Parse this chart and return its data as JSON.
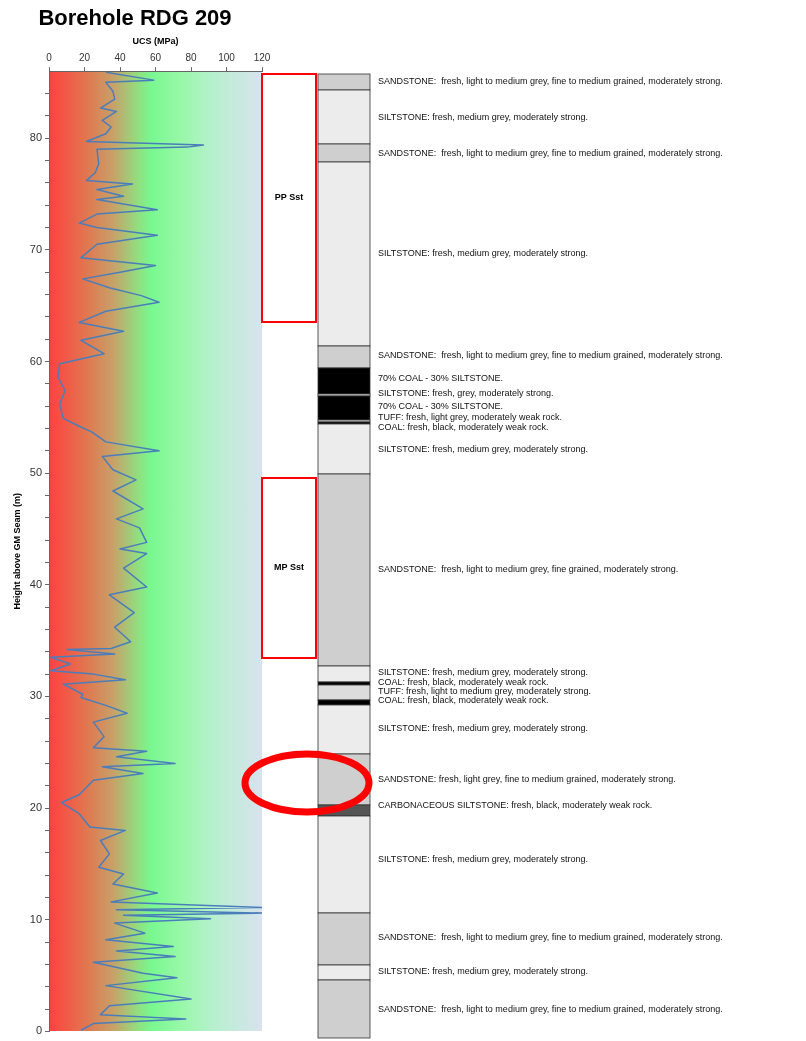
{
  "chart_data": {
    "type": "line",
    "title": "Borehole RDG 209",
    "xlabel": "UCS (MPa)",
    "ylabel": "Height above GM Seam (m)",
    "xlim": [
      0,
      120
    ],
    "xticks": [
      0,
      20,
      40,
      60,
      80,
      100,
      120
    ],
    "ylim": [
      0,
      86
    ],
    "yticks": [
      0,
      {
        "value": 2,
        "label": null
      },
      {
        "value": 4,
        "label": null
      },
      {
        "value": 6,
        "label": null
      },
      {
        "value": 8,
        "label": null
      },
      10,
      {
        "value": 12,
        "label": null
      },
      {
        "value": 14,
        "label": null
      },
      {
        "value": 16,
        "label": null
      },
      {
        "value": 18,
        "label": null
      },
      20,
      {
        "value": 22,
        "label": null
      },
      {
        "value": 24,
        "label": null
      },
      {
        "value": 26,
        "label": null
      },
      {
        "value": 28,
        "label": null
      },
      30,
      {
        "value": 32,
        "label": null
      },
      {
        "value": 34,
        "label": null
      },
      {
        "value": 36,
        "label": null
      },
      {
        "value": 38,
        "label": null
      },
      40,
      {
        "value": 42,
        "label": null
      },
      {
        "value": 44,
        "label": null
      },
      {
        "value": 46,
        "label": null
      },
      {
        "value": 48,
        "label": null
      },
      50,
      {
        "value": 52,
        "label": null
      },
      {
        "value": 54,
        "label": null
      },
      {
        "value": 56,
        "label": null
      },
      {
        "value": 58,
        "label": null
      },
      60,
      {
        "value": 62,
        "label": null
      },
      {
        "value": 64,
        "label": null
      },
      {
        "value": 66,
        "label": null
      },
      {
        "value": 68,
        "label": null
      },
      70,
      {
        "value": 72,
        "label": null
      },
      {
        "value": 74,
        "label": null
      },
      {
        "value": 76,
        "label": null
      },
      {
        "value": 78,
        "label": null
      },
      80,
      {
        "value": 82,
        "label": null
      },
      {
        "value": 84,
        "label": null
      }
    ],
    "legend": false,
    "marker": "none",
    "line_style": "solid",
    "series": [
      {
        "color": "#4a7ebb",
        "x": [
          32,
          59,
          32,
          36,
          37,
          29,
          38,
          30,
          35,
          32,
          21,
          87,
          78,
          27,
          28,
          26,
          21,
          47,
          27,
          42,
          27,
          61,
          27,
          17,
          27,
          61,
          27,
          18,
          60,
          40,
          19,
          34,
          52,
          62,
          32,
          17,
          42,
          18,
          31,
          6,
          5,
          9,
          6,
          8,
          17,
          24,
          32,
          62,
          30,
          36,
          49,
          36,
          53,
          38,
          51,
          55,
          40,
          55,
          42,
          55,
          34,
          48,
          37,
          46,
          35,
          10,
          37,
          1,
          12,
          1,
          25,
          43,
          8,
          19,
          18,
          32,
          44,
          25,
          31,
          25,
          55,
          38,
          71,
          30,
          53,
          25,
          17,
          7,
          17,
          23,
          43,
          29,
          34,
          28,
          42,
          36,
          61,
          35,
          120,
          38,
          120,
          42,
          91,
          37,
          54,
          32,
          70,
          38,
          71,
          25,
          53,
          72,
          32,
          80,
          34,
          29,
          77,
          25,
          18
        ],
        "values": [
          85.9,
          85.2,
          85.0,
          84.2,
          83.5,
          82.7,
          82.4,
          81.6,
          81.0,
          80.4,
          79.7,
          79.4,
          79.2,
          79.0,
          77.7,
          76.9,
          76.2,
          75.9,
          75.4,
          74.8,
          74.5,
          73.6,
          73.2,
          72.4,
          72.0,
          71.3,
          70.5,
          69.3,
          68.6,
          68.0,
          67.4,
          66.6,
          65.9,
          65.3,
          64.5,
          63.5,
          62.7,
          61.9,
          60.7,
          59.8,
          58.6,
          57.4,
          56.2,
          54.9,
          54.2,
          53.7,
          52.8,
          52.0,
          51.5,
          50.3,
          49.4,
          48.4,
          46.8,
          45.9,
          45.1,
          43.8,
          43.2,
          42.8,
          41.5,
          39.8,
          39.1,
          37.5,
          36.2,
          34.9,
          34.3,
          34.2,
          33.8,
          33.5,
          32.9,
          32.3,
          32.0,
          31.5,
          31.1,
          30.2,
          29.9,
          29.2,
          28.5,
          27.7,
          26.4,
          25.4,
          25.1,
          24.6,
          24.0,
          23.7,
          23.1,
          22.5,
          21.2,
          20.5,
          19.5,
          18.3,
          18.0,
          17.1,
          15.9,
          14.7,
          14.1,
          13.2,
          12.4,
          11.6,
          11.1,
          10.9,
          10.6,
          10.4,
          10.1,
          9.7,
          8.8,
          8.2,
          7.6,
          7.2,
          6.7,
          6.2,
          5.2,
          4.8,
          4.1,
          2.9,
          2.3,
          1.5,
          1.1,
          0.7,
          0.1
        ]
      }
    ],
    "annotations": [
      "PP Sst",
      "MP Sst",
      "SANDSTONE:  fresh, light to medium grey, fine to medium grained, moderately strong.",
      "SILTSTONE: fresh, medium grey, moderately strong.",
      "SANDSTONE:  fresh, light to medium grey, fine to medium grained, moderately strong.",
      "SILTSTONE: fresh, medium grey, moderately strong.",
      "SANDSTONE:  fresh, light to medium grey, fine to medium grained, moderately strong.",
      "70% COAL - 30% SILTSTONE.",
      "SILTSTONE: fresh, grey, moderately strong.",
      "70% COAL - 30% SILTSTONE.",
      "TUFF: fresh, light grey, moderately weak rock.",
      "COAL: fresh, black, moderately weak rock.",
      "SILTSTONE: fresh, medium grey, moderately strong.",
      "SANDSTONE:  fresh, light to medium grey, fine grained, moderately strong.",
      "SILTSTONE: fresh, medium grey, moderately strong.",
      "COAL: fresh, black, moderately weak rock.",
      "TUFF: fresh, light to medium grey, moderately strong.",
      "COAL: fresh, black, moderately weak rock.",
      "SILTSTONE: fresh, medium grey, moderately strong.",
      "SANDSTONE: fresh, light grey, fine to medium grained, moderately strong.",
      "CARBONACEOUS SILTSTONE: fresh, black, moderately weak rock.",
      "SILTSTONE: fresh, medium grey, moderately strong.",
      "SANDSTONE:  fresh, light to medium grey, fine to medium grained, moderately strong.",
      "SILTSTONE: fresh, medium grey, moderately strong.",
      "SANDSTONE:  fresh, light to medium grey, fine to medium grained, moderately strong."
    ]
  }
}
